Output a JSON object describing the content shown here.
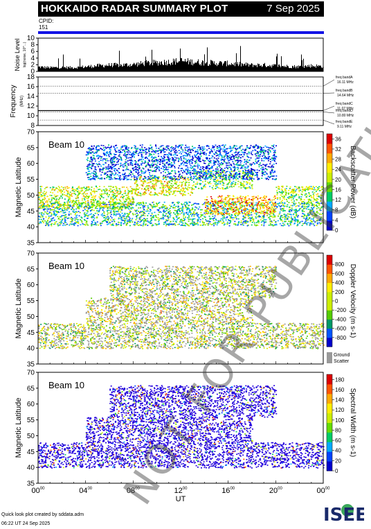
{
  "header": {
    "title": "HOKKAIDO RADAR SUMMARY PLOT",
    "date": "7 Sep 2025"
  },
  "cpid": {
    "label": "CPID:",
    "value": "151"
  },
  "watermark": "NOT FOR PUBLICATION",
  "footer": {
    "credit": "Quick look plot created by sddata.adm",
    "generated": "06:22 UT 24 Sep 2025",
    "logo": "ISEE"
  },
  "colors": {
    "cpid_bar": "#1414e6",
    "noise": "#000000",
    "ground_scatter": "#999999"
  },
  "chart_data": [
    {
      "type": "bar",
      "ylabel": "Noise Level",
      "ylabel_sub": "log(noise, 10^...)",
      "ylim": [
        0,
        10
      ],
      "yticks": [
        0,
        2,
        4,
        6,
        8,
        10
      ],
      "x_hours": [
        0,
        1,
        2,
        3,
        4,
        5,
        6,
        7,
        8,
        9,
        10,
        11,
        12,
        13,
        14,
        15,
        16,
        17,
        18,
        19,
        20,
        21,
        22,
        23,
        24
      ],
      "values": [
        1.4,
        1.2,
        1.3,
        1.2,
        1.5,
        1.8,
        2.0,
        2.0,
        2.2,
        2.6,
        2.8,
        3.0,
        3.3,
        3.0,
        2.8,
        2.6,
        2.5,
        2.2,
        2.0,
        2.0,
        1.8,
        1.6,
        1.5,
        1.8,
        1.6
      ]
    },
    {
      "type": "line",
      "ylabel": "Frequency",
      "ylabel_sub": "(MHz)",
      "ylim": [
        8,
        18
      ],
      "yticks": [
        8,
        10,
        12,
        14,
        16,
        18
      ],
      "freq_bands": [
        {
          "label": "freq bandA",
          "value": "16.11 MHz",
          "mhz": 16.11
        },
        {
          "label": "freq bandB",
          "value": "14.64 MHz",
          "mhz": 14.64
        },
        {
          "label": "freq bandC",
          "value": "11.07 MHz",
          "mhz": 11.07
        },
        {
          "label": "freq bandD",
          "value": "10.80 MHz",
          "mhz": 10.8
        },
        {
          "label": "freq bandE",
          "value": "9.11 MHz",
          "mhz": 9.11
        }
      ],
      "operating_mhz": 11.07
    },
    {
      "type": "heatmap",
      "beam": "Beam 10",
      "ylabel": "Magnetic Latitude",
      "ylim": [
        35,
        70
      ],
      "yticks": [
        35,
        40,
        45,
        50,
        55,
        60,
        65,
        70
      ],
      "colorbar_label": "Backscatter Power (dB)",
      "colorbar_ticks": [
        0,
        4,
        8,
        12,
        16,
        20,
        24,
        28,
        32,
        36
      ],
      "colorbar_range": [
        0,
        38
      ],
      "features": [
        {
          "lat": [
            40.5,
            48
          ],
          "hours": [
            0,
            24
          ],
          "level": 0.35
        },
        {
          "lat": [
            46,
            53
          ],
          "hours": [
            0,
            8
          ],
          "level": 0.55
        },
        {
          "lat": [
            50,
            56
          ],
          "hours": [
            8,
            13
          ],
          "level": 0.6
        },
        {
          "lat": [
            44,
            50
          ],
          "hours": [
            14,
            20
          ],
          "level": 0.75
        },
        {
          "lat": [
            48,
            53
          ],
          "hours": [
            20,
            24
          ],
          "level": 0.5
        },
        {
          "lat": [
            52,
            58
          ],
          "hours": [
            13,
            18
          ],
          "level": 0.45
        },
        {
          "lat": [
            55,
            66
          ],
          "hours": [
            4,
            20
          ],
          "level": 0.15
        }
      ]
    },
    {
      "type": "heatmap",
      "beam": "Beam 10",
      "ylabel": "Magnetic Latitude",
      "ylim": [
        35,
        70
      ],
      "yticks": [
        35,
        40,
        45,
        50,
        55,
        60,
        65,
        70
      ],
      "colorbar_label": "Doppler Velocity (m s-1)",
      "colorbar_ticks": [
        -800,
        -600,
        -400,
        -200,
        0,
        200,
        400,
        600,
        800
      ],
      "colorbar_range": [
        -1000,
        1000
      ],
      "ground_label": "Ground",
      "ground_label2": "Scatter",
      "features": [
        {
          "lat": [
            40,
            48
          ],
          "hours": [
            0,
            24
          ],
          "level": 0.5
        },
        {
          "lat": [
            48,
            56
          ],
          "hours": [
            4,
            18
          ],
          "level": 0.45
        },
        {
          "lat": [
            56,
            66
          ],
          "hours": [
            6,
            20
          ],
          "level": 0.5
        }
      ]
    },
    {
      "type": "heatmap",
      "beam": "Beam 10",
      "ylabel": "Magnetic Latitude",
      "ylim": [
        35,
        70
      ],
      "yticks": [
        35,
        40,
        45,
        50,
        55,
        60,
        65,
        70
      ],
      "colorbar_label": "Spectral Width (m s-1)",
      "colorbar_ticks": [
        0,
        20,
        40,
        60,
        80,
        100,
        120,
        140,
        160,
        180
      ],
      "colorbar_range": [
        0,
        190
      ],
      "xlabel": "UT",
      "xticks": [
        "00",
        "04",
        "08",
        "12",
        "16",
        "20",
        "00"
      ],
      "xtick_sup": "00",
      "features": [
        {
          "lat": [
            40,
            48
          ],
          "hours": [
            0,
            24
          ],
          "level": 0.05
        },
        {
          "lat": [
            48,
            56
          ],
          "hours": [
            4,
            18
          ],
          "level": 0.05
        },
        {
          "lat": [
            56,
            66
          ],
          "hours": [
            6,
            20
          ],
          "level": 0.1
        }
      ]
    }
  ]
}
